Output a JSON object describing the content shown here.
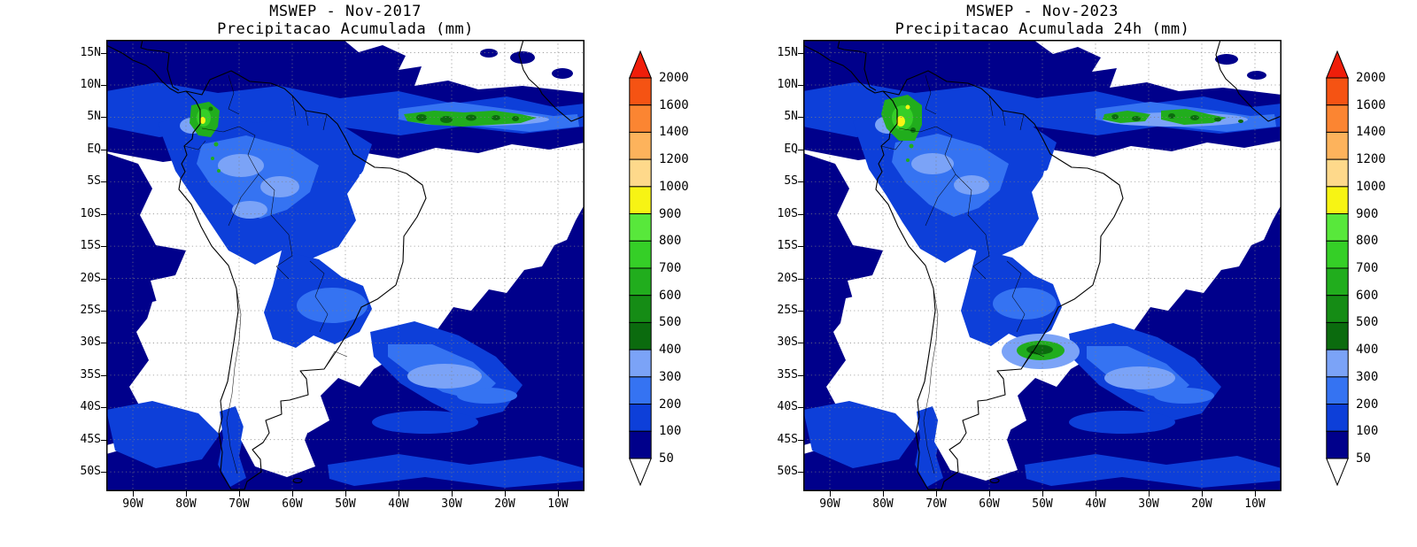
{
  "figure": {
    "background": "#ffffff"
  },
  "panels": [
    {
      "id": "nov-2017",
      "title": "MSWEP - Nov-2017",
      "subtitle": "Precipitacao Acumulada (mm)",
      "lat_ticks": [
        "15N",
        "10N",
        "5N",
        "EQ",
        "5S",
        "10S",
        "15S",
        "20S",
        "25S",
        "30S",
        "35S",
        "40S",
        "45S",
        "50S"
      ],
      "lon_ticks": [
        "90W",
        "80W",
        "70W",
        "60W",
        "50W",
        "40W",
        "30W",
        "20W",
        "10W"
      ]
    },
    {
      "id": "nov-2023",
      "title": "MSWEP - Nov-2023",
      "subtitle": "Precipitacao Acumulada 24h (mm)",
      "lat_ticks": [
        "15N",
        "10N",
        "5N",
        "EQ",
        "5S",
        "10S",
        "15S",
        "20S",
        "25S",
        "30S",
        "35S",
        "40S",
        "45S",
        "50S"
      ],
      "lon_ticks": [
        "90W",
        "80W",
        "70W",
        "60W",
        "50W",
        "40W",
        "30W",
        "20W",
        "10W"
      ]
    }
  ],
  "colorbar": {
    "levels_top_to_bottom": [
      "2000",
      "1600",
      "1400",
      "1200",
      "1000",
      "900",
      "800",
      "700",
      "600",
      "500",
      "400",
      "300",
      "200",
      "100",
      "50"
    ],
    "arrow_top_color": "#f01e0a",
    "arrow_bottom_color": "#ffffff",
    "segment_colors_top_to_bottom": [
      "#f55313",
      "#fb8532",
      "#fdb35c",
      "#fed98b",
      "#f7f414",
      "#58e83b",
      "#35cf27",
      "#21ad1d",
      "#158c15",
      "#0b6b0e",
      "#7ba3f7",
      "#3573f2",
      "#0d3fd9",
      "#00008b"
    ],
    "outline_color": "#000000"
  },
  "map_style": {
    "grid_color": "#808080",
    "coast_color": "#000000",
    "background": "#ffffff"
  },
  "chart_data": [
    {
      "type": "heatmap",
      "title": "MSWEP - Nov-2017",
      "subtitle": "Precipitacao Acumulada (mm)",
      "x_ticks": [
        "90W",
        "80W",
        "70W",
        "60W",
        "50W",
        "40W",
        "30W",
        "20W",
        "10W"
      ],
      "y_ticks": [
        "15N",
        "10N",
        "5N",
        "EQ",
        "5S",
        "10S",
        "15S",
        "20S",
        "25S",
        "30S",
        "35S",
        "40S",
        "45S",
        "50S"
      ],
      "colorbar_levels_mm": [
        50,
        100,
        200,
        300,
        400,
        500,
        600,
        700,
        800,
        900,
        1000,
        1200,
        1400,
        1600,
        2000
      ],
      "colorbar_colors_low_to_high": [
        "#ffffff",
        "#00008b",
        "#0d3fd9",
        "#3573f2",
        "#7ba3f7",
        "#0b6b0e",
        "#158c15",
        "#21ad1d",
        "#35cf27",
        "#58e83b",
        "#f7f414",
        "#fed98b",
        "#fdb35c",
        "#fb8532",
        "#f55313",
        "#f01e0a"
      ],
      "units": "mm",
      "grid": true,
      "legend_position": "right"
    },
    {
      "type": "heatmap",
      "title": "MSWEP - Nov-2023",
      "subtitle": "Precipitacao Acumulada 24h (mm)",
      "x_ticks": [
        "90W",
        "80W",
        "70W",
        "60W",
        "50W",
        "40W",
        "30W",
        "20W",
        "10W"
      ],
      "y_ticks": [
        "15N",
        "10N",
        "5N",
        "EQ",
        "5S",
        "10S",
        "15S",
        "20S",
        "25S",
        "30S",
        "35S",
        "40S",
        "45S",
        "50S"
      ],
      "colorbar_levels_mm": [
        50,
        100,
        200,
        300,
        400,
        500,
        600,
        700,
        800,
        900,
        1000,
        1200,
        1400,
        1600,
        2000
      ],
      "colorbar_colors_low_to_high": [
        "#ffffff",
        "#00008b",
        "#0d3fd9",
        "#3573f2",
        "#7ba3f7",
        "#0b6b0e",
        "#158c15",
        "#21ad1d",
        "#35cf27",
        "#58e83b",
        "#f7f414",
        "#fed98b",
        "#fdb35c",
        "#fb8532",
        "#f55313",
        "#f01e0a"
      ],
      "units": "mm",
      "grid": true,
      "legend_position": "right"
    }
  ]
}
